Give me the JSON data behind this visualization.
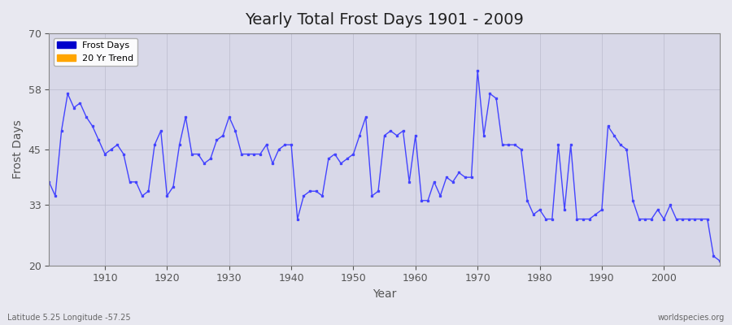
{
  "title": "Yearly Total Frost Days 1901 - 2009",
  "ylabel": "Frost Days",
  "xlabel": "Year",
  "bottom_left_label": "Latitude 5.25 Longitude -57.25",
  "bottom_right_label": "worldspecies.org",
  "legend_entries": [
    "Frost Days",
    "20 Yr Trend"
  ],
  "legend_colors": [
    "#0000cc",
    "#ffa500"
  ],
  "line_color": "#4444ff",
  "bg_color": "#e8e8f0",
  "plot_bg_color": "#d8d8e8",
  "ylim": [
    20,
    70
  ],
  "yticks": [
    20,
    33,
    45,
    58,
    70
  ],
  "years": [
    1901,
    1902,
    1903,
    1904,
    1905,
    1906,
    1907,
    1908,
    1909,
    1910,
    1911,
    1912,
    1913,
    1914,
    1915,
    1916,
    1917,
    1918,
    1919,
    1920,
    1921,
    1922,
    1923,
    1924,
    1925,
    1926,
    1927,
    1928,
    1929,
    1930,
    1931,
    1932,
    1933,
    1934,
    1935,
    1936,
    1937,
    1938,
    1939,
    1940,
    1941,
    1942,
    1943,
    1944,
    1945,
    1946,
    1947,
    1948,
    1949,
    1950,
    1951,
    1952,
    1953,
    1954,
    1955,
    1956,
    1957,
    1958,
    1959,
    1960,
    1961,
    1962,
    1963,
    1964,
    1965,
    1966,
    1967,
    1968,
    1969,
    1970,
    1971,
    1972,
    1973,
    1974,
    1975,
    1976,
    1977,
    1978,
    1979,
    1980,
    1981,
    1982,
    1983,
    1984,
    1985,
    1986,
    1987,
    1988,
    1989,
    1990,
    1991,
    1992,
    1993,
    1994,
    1995,
    1996,
    1997,
    1998,
    1999,
    2000,
    2001,
    2002,
    2003,
    2004,
    2005,
    2006,
    2007,
    2008,
    2009
  ],
  "values": [
    38,
    35,
    49,
    57,
    54,
    55,
    52,
    50,
    47,
    44,
    45,
    46,
    44,
    38,
    38,
    35,
    36,
    46,
    49,
    35,
    37,
    46,
    52,
    44,
    44,
    42,
    43,
    47,
    48,
    52,
    49,
    44,
    44,
    44,
    44,
    46,
    42,
    45,
    46,
    46,
    30,
    35,
    36,
    36,
    35,
    43,
    44,
    42,
    43,
    44,
    48,
    52,
    35,
    36,
    48,
    49,
    48,
    49,
    38,
    48,
    34,
    34,
    38,
    35,
    39,
    38,
    40,
    39,
    39,
    62,
    48,
    57,
    56,
    46,
    46,
    46,
    45,
    34,
    31,
    32,
    30,
    30,
    46,
    32,
    46,
    30,
    30,
    30,
    31,
    32,
    50,
    48,
    46,
    45,
    34,
    30,
    30,
    30,
    32,
    30,
    33,
    30,
    30,
    30,
    30,
    30,
    30,
    22,
    21
  ]
}
